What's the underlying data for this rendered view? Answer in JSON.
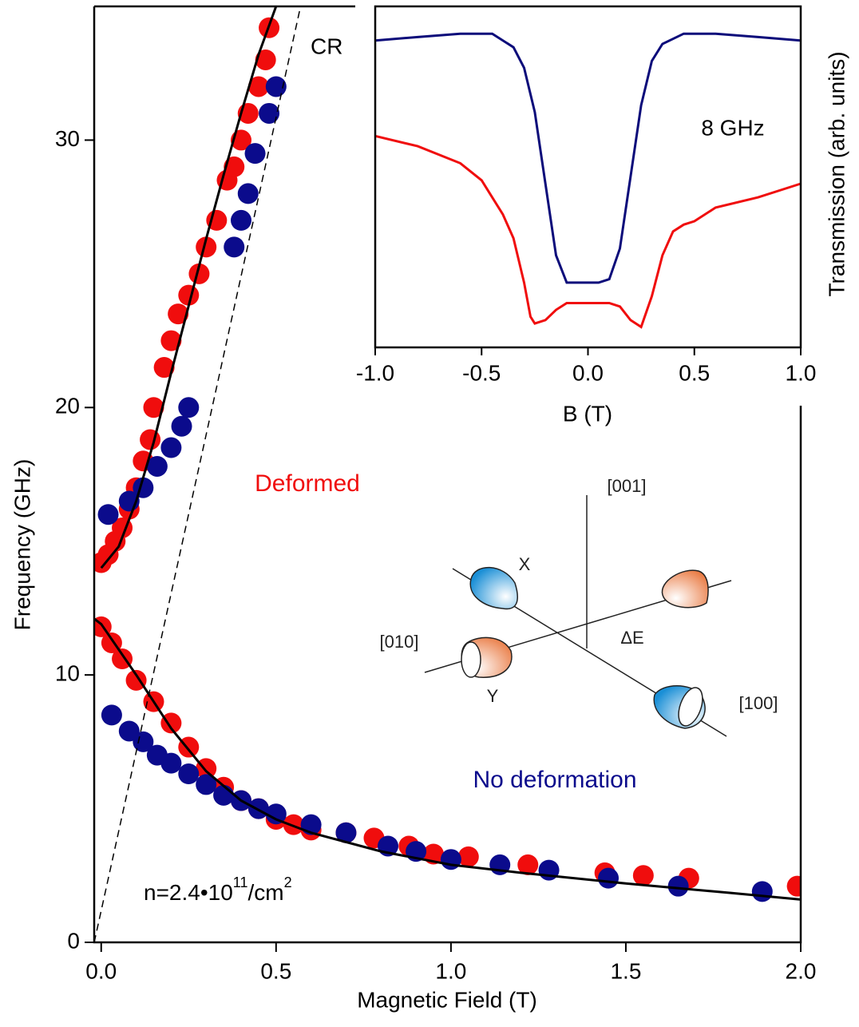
{
  "chart_data": [
    {
      "type": "scatter",
      "x_label": "Magnetic Field (T)",
      "y_label": "Frequency (GHz)",
      "xlim": [
        -0.02,
        2.0
      ],
      "ylim": [
        0,
        35
      ],
      "xticks": [
        {
          "value": 0,
          "label": "0.0"
        },
        0.5,
        {
          "value": 1,
          "label": "1.0"
        },
        1.5,
        {
          "value": 2,
          "label": "2.0"
        }
      ],
      "yticks": [
        0,
        10,
        20,
        30
      ],
      "series": [
        {
          "name": "Deformed",
          "color": "#f00d0d",
          "branches": [
            {
              "x": [
                0.0,
                0.02,
                0.04,
                0.06,
                0.08,
                0.1,
                0.12,
                0.14,
                0.15,
                0.18,
                0.2,
                0.22,
                0.25,
                0.28,
                0.3,
                0.33,
                0.36,
                0.38,
                0.4,
                0.42,
                0.45,
                0.47,
                0.48
              ],
              "values": [
                14.2,
                14.5,
                15,
                15.5,
                16.2,
                17,
                18,
                18.8,
                20,
                21.5,
                22.5,
                23.5,
                24.2,
                25,
                26,
                27,
                28.5,
                29,
                30,
                31,
                32,
                33,
                34.2
              ]
            },
            {
              "x": [
                0.0,
                0.03,
                0.06,
                0.1,
                0.15,
                0.2,
                0.25,
                0.3,
                0.35,
                0.4,
                0.45,
                0.5,
                0.55,
                0.6,
                0.7,
                0.78,
                0.88,
                0.95,
                1.05,
                1.22,
                1.44,
                1.55,
                1.68,
                1.99
              ],
              "values": [
                11.8,
                11.2,
                10.6,
                9.8,
                9,
                8.2,
                7.3,
                6.5,
                5.8,
                5.3,
                5,
                4.6,
                4.4,
                4.2,
                4.1,
                3.9,
                3.6,
                3.3,
                3.2,
                2.9,
                2.6,
                2.5,
                2.4,
                2.1
              ]
            }
          ]
        },
        {
          "name": "No deformation",
          "color": "#0b0b8c",
          "branches": [
            {
              "x": [
                0.02,
                0.08,
                0.12,
                0.16,
                0.2,
                0.23,
                0.25,
                0.38,
                0.4,
                0.42,
                0.44,
                0.48,
                0.5
              ],
              "values": [
                16,
                16.5,
                17,
                17.8,
                18.5,
                19.3,
                20,
                26,
                27,
                28,
                29.5,
                31,
                32
              ]
            },
            {
              "x": [
                0.03,
                0.08,
                0.12,
                0.16,
                0.2,
                0.25,
                0.3,
                0.35,
                0.4,
                0.45,
                0.5,
                0.6,
                0.7,
                0.82,
                0.9,
                1.0,
                1.14,
                1.28,
                1.45,
                1.65,
                1.89
              ],
              "values": [
                8.5,
                7.9,
                7.5,
                7,
                6.7,
                6.3,
                5.9,
                5.5,
                5.3,
                5,
                4.8,
                4.4,
                4.1,
                3.6,
                3.4,
                3.1,
                2.9,
                2.7,
                2.4,
                2.1,
                1.9
              ]
            }
          ]
        }
      ],
      "fits": {
        "color": "#000000",
        "curves": [
          {
            "x": [
              0,
              0.05,
              0.1,
              0.15,
              0.2,
              0.25,
              0.3,
              0.35,
              0.4,
              0.45,
              0.5
            ],
            "values": [
              14,
              14.8,
              16.5,
              18.7,
              21.3,
              23.8,
              26.3,
              28.7,
              31,
              33.2,
              35
            ]
          },
          {
            "x": [
              -0.02,
              0,
              0.1,
              0.2,
              0.3,
              0.4,
              0.5,
              0.6,
              0.8,
              1.0,
              1.2,
              1.5,
              1.8,
              2.0
            ],
            "values": [
              12.1,
              11.9,
              10,
              8,
              6.4,
              5.3,
              4.6,
              4.1,
              3.4,
              2.9,
              2.6,
              2.2,
              1.85,
              1.6
            ]
          }
        ]
      },
      "cr_line": {
        "name": "CR",
        "color": "#000000",
        "x": [
          -0.02,
          0.57
        ],
        "values": [
          0,
          35
        ]
      },
      "density": {
        "base": "n=2.4•10",
        "exponent": "11",
        "unit": "/cm",
        "unit_exponent": "2"
      }
    },
    {
      "type": "line",
      "x_label": "B (T)",
      "y_label": "Transmission (arb. units)",
      "annotation": "8 GHz",
      "xlim": [
        -1,
        1
      ],
      "ylim": [
        0,
        1
      ],
      "xticks": [
        {
          "value": -1,
          "label": "-1.0"
        },
        -0.5,
        {
          "value": 0,
          "label": "0.0"
        },
        0.5,
        {
          "value": 1,
          "label": "1.0"
        }
      ],
      "series": [
        {
          "color": "#0b0b7a",
          "x": [
            -1,
            -0.8,
            -0.6,
            -0.45,
            -0.35,
            -0.3,
            -0.25,
            -0.2,
            -0.15,
            -0.1,
            -0.05,
            0,
            0.05,
            0.1,
            0.15,
            0.2,
            0.25,
            0.3,
            0.35,
            0.45,
            0.6,
            0.8,
            1.0
          ],
          "values": [
            0.9,
            0.91,
            0.92,
            0.92,
            0.88,
            0.82,
            0.69,
            0.48,
            0.27,
            0.19,
            0.19,
            0.19,
            0.19,
            0.2,
            0.29,
            0.5,
            0.71,
            0.84,
            0.89,
            0.92,
            0.92,
            0.91,
            0.9
          ]
        },
        {
          "color": "#f00d0d",
          "x": [
            -1,
            -0.8,
            -0.6,
            -0.5,
            -0.4,
            -0.35,
            -0.3,
            -0.27,
            -0.25,
            -0.2,
            -0.15,
            -0.1,
            -0.05,
            0,
            0.05,
            0.1,
            0.15,
            0.2,
            0.25,
            0.3,
            0.35,
            0.4,
            0.45,
            0.5,
            0.6,
            0.8,
            1.0
          ],
          "values": [
            0.62,
            0.59,
            0.54,
            0.49,
            0.39,
            0.32,
            0.19,
            0.09,
            0.07,
            0.08,
            0.11,
            0.13,
            0.13,
            0.13,
            0.13,
            0.13,
            0.12,
            0.08,
            0.06,
            0.15,
            0.27,
            0.34,
            0.36,
            0.37,
            0.41,
            0.44,
            0.48
          ]
        }
      ]
    }
  ],
  "diagram": {
    "labels": [
      "[001]",
      "X",
      "[010]",
      "ΔE",
      "Y",
      "[100]"
    ]
  }
}
